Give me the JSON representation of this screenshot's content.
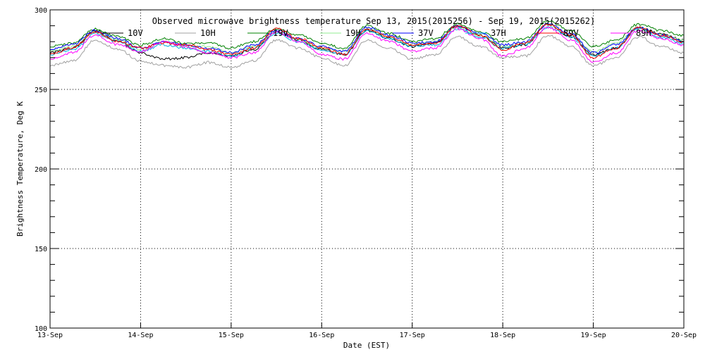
{
  "chart_data": {
    "type": "line",
    "title": "Observed microwave brightness temperature Sep 13, 2015(2015256) - Sep 19, 2015(2015262)",
    "xlabel": "Date (EST)",
    "ylabel": "Brightness Temperature, Deg K",
    "ylim": [
      100,
      300
    ],
    "yticks": [
      100,
      150,
      200,
      250,
      300
    ],
    "ytick_labels": [
      "100",
      "150",
      "200",
      "250",
      "300"
    ],
    "xlim": [
      0,
      7
    ],
    "xtick_labels": [
      "13-Sep",
      "14-Sep",
      "15-Sep",
      "16-Sep",
      "17-Sep",
      "18-Sep",
      "19-Sep",
      "20-Sep"
    ],
    "grid": true,
    "legend_position": "top",
    "x": [
      0,
      0.25,
      0.5,
      0.75,
      1.0,
      1.25,
      1.5,
      1.75,
      2.0,
      2.25,
      2.5,
      2.75,
      3.0,
      3.25,
      3.5,
      3.75,
      4.0,
      4.25,
      4.5,
      4.75,
      5.0,
      5.25,
      5.5,
      5.75,
      6.0,
      6.25,
      6.5,
      6.75,
      7.0
    ],
    "series": [
      {
        "name": "10V",
        "color": "#000000",
        "values": [
          273,
          276,
          287,
          280,
          273,
          269,
          270,
          273,
          271,
          275,
          286,
          281,
          275,
          272,
          287,
          282,
          277,
          279,
          290,
          284,
          276,
          278,
          291,
          283,
          272,
          276,
          289,
          285,
          281
        ]
      },
      {
        "name": "10H",
        "color": "#a0a0a0",
        "values": [
          265,
          268,
          281,
          275,
          268,
          265,
          264,
          267,
          264,
          268,
          281,
          276,
          270,
          265,
          281,
          276,
          269,
          272,
          283,
          277,
          270,
          271,
          284,
          277,
          265,
          270,
          283,
          277,
          273
        ]
      },
      {
        "name": "19V",
        "color": "#008000",
        "values": [
          277,
          279,
          288,
          283,
          278,
          282,
          279,
          279,
          276,
          280,
          288,
          284,
          279,
          276,
          290,
          285,
          280,
          282,
          291,
          286,
          280,
          282,
          293,
          287,
          277,
          281,
          291,
          287,
          284
        ]
      },
      {
        "name": "19H",
        "color": "#90ee90",
        "values": [
          274,
          277,
          286,
          281,
          275,
          280,
          277,
          277,
          273,
          277,
          286,
          281,
          276,
          274,
          288,
          283,
          278,
          280,
          289,
          284,
          277,
          279,
          291,
          284,
          274,
          279,
          289,
          284,
          281
        ]
      },
      {
        "name": "37V",
        "color": "#0000ff",
        "values": [
          275,
          278,
          287,
          282,
          276,
          280,
          278,
          276,
          273,
          278,
          287,
          282,
          277,
          274,
          289,
          284,
          279,
          280,
          290,
          285,
          278,
          280,
          291,
          285,
          273,
          278,
          289,
          284,
          280
        ]
      },
      {
        "name": "37H",
        "color": "#00b0e0",
        "values": [
          272,
          275,
          285,
          280,
          274,
          278,
          276,
          274,
          271,
          276,
          285,
          280,
          275,
          272,
          287,
          282,
          277,
          278,
          288,
          283,
          276,
          278,
          289,
          283,
          271,
          276,
          288,
          283,
          279
        ]
      },
      {
        "name": "89V",
        "color": "#ff0000",
        "values": [
          272,
          276,
          286,
          280,
          276,
          279,
          278,
          275,
          272,
          276,
          288,
          282,
          276,
          272,
          288,
          283,
          278,
          279,
          290,
          284,
          275,
          279,
          291,
          284,
          270,
          276,
          289,
          284,
          280
        ]
      },
      {
        "name": "89H",
        "color": "#ff00ff",
        "values": [
          269,
          273,
          284,
          278,
          274,
          280,
          277,
          273,
          270,
          273,
          286,
          280,
          272,
          269,
          285,
          280,
          274,
          276,
          288,
          282,
          271,
          276,
          289,
          281,
          267,
          273,
          287,
          282,
          278
        ]
      }
    ]
  }
}
